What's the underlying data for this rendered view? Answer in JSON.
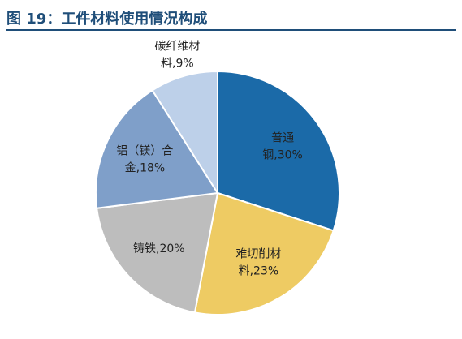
{
  "figure": {
    "title": "图 19：工件材料使用情况构成"
  },
  "chart_data": {
    "type": "pie",
    "title": "",
    "categories": [
      "普通钢",
      "难切削材料",
      "铸铁",
      "铝（镁）合金",
      "碳纤维材料"
    ],
    "values": [
      30,
      23,
      20,
      18,
      9
    ],
    "unit": "%",
    "colors": [
      "#1b6aa8",
      "#eecb63",
      "#bdbdbd",
      "#7f9fc9",
      "#bdd0e9"
    ],
    "labels": [
      [
        "普通",
        "钢,30%"
      ],
      [
        "难切削材",
        "料,23%"
      ],
      [
        "铸铁,20%"
      ],
      [
        "铝（镁）合",
        "金,18%"
      ],
      [
        "碳纤维材",
        "料,9%"
      ]
    ]
  }
}
